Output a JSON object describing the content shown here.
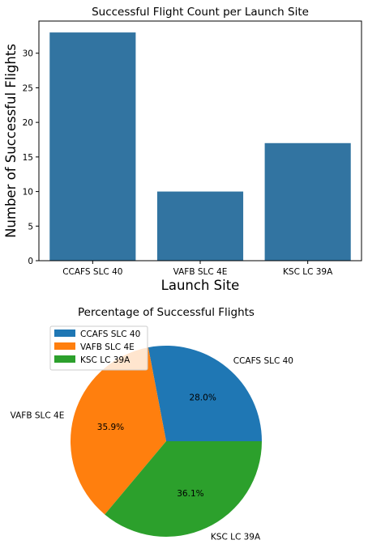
{
  "chart_data": [
    {
      "type": "bar",
      "title": "Successful Flight Count per Launch Site",
      "xlabel": "Launch Site",
      "ylabel": "Number of Successful Flights",
      "categories": [
        "CCAFS SLC 40",
        "VAFB SLC 4E",
        "KSC LC 39A"
      ],
      "values": [
        33,
        10,
        17
      ],
      "ylim": [
        0,
        34.65
      ],
      "yticks": [
        "0",
        "5",
        "10",
        "15",
        "20",
        "25",
        "30"
      ],
      "color": "#3274a1",
      "grid": false
    },
    {
      "type": "pie",
      "title": "Percentage of Successful Flights",
      "labels": [
        "CCAFS SLC 40",
        "VAFB SLC 4E",
        "KSC LC 39A"
      ],
      "values": [
        28.0,
        35.9,
        36.1
      ],
      "pct_labels": [
        "28.0%",
        "35.9%",
        "36.1%"
      ],
      "colors": [
        "#1f77b4",
        "#ff7f0e",
        "#2ca02c"
      ],
      "legend": {
        "placement": "upper-left",
        "entries": [
          "CCAFS SLC 40",
          "VAFB SLC 4E",
          "KSC LC 39A"
        ]
      }
    }
  ]
}
